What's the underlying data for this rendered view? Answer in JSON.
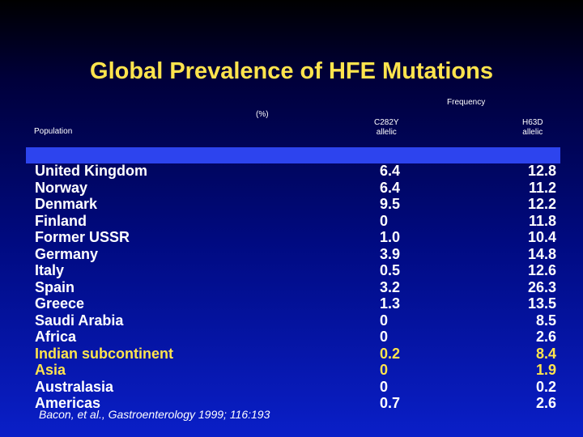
{
  "slide": {
    "title": "Global Prevalence of HFE Mutations",
    "frequency_label": "Frequency",
    "percent_label": "(%)",
    "population_label": "Population",
    "c282y_label": "C282Y",
    "h63d_label": "H63D",
    "allelic_label": "allelic",
    "footnote": "Bacon, et al., Gastroenterology 1999; 116:193"
  },
  "rows": [
    {
      "population": "United Kingdom",
      "c282y": "6.4",
      "h63d": "12.8",
      "highlight": false
    },
    {
      "population": "Norway",
      "c282y": "6.4",
      "h63d": "11.2",
      "highlight": false
    },
    {
      "population": "Denmark",
      "c282y": "9.5",
      "h63d": "12.2",
      "highlight": false
    },
    {
      "population": "Finland",
      "c282y": "0",
      "h63d": "11.8",
      "highlight": false
    },
    {
      "population": "Former USSR",
      "c282y": "1.0",
      "h63d": "10.4",
      "highlight": false
    },
    {
      "population": "Germany",
      "c282y": "3.9",
      "h63d": "14.8",
      "highlight": false
    },
    {
      "population": "Italy",
      "c282y": "0.5",
      "h63d": "12.6",
      "highlight": false
    },
    {
      "population": "Spain",
      "c282y": "3.2",
      "h63d": "26.3",
      "highlight": false
    },
    {
      "population": "Greece",
      "c282y": "1.3",
      "h63d": "13.5",
      "highlight": false
    },
    {
      "population": "Saudi Arabia",
      "c282y": "0",
      "h63d": "8.5",
      "highlight": false
    },
    {
      "population": "Africa",
      "c282y": "0",
      "h63d": "2.6",
      "highlight": false
    },
    {
      "population": "Indian subcontinent",
      "c282y": "0.2",
      "h63d": "8.4",
      "highlight": true
    },
    {
      "population": "Asia",
      "c282y": "0",
      "h63d": "1.9",
      "highlight": true
    },
    {
      "population": "Australasia",
      "c282y": "0",
      "h63d": "0.2",
      "highlight": false
    },
    {
      "population": "Americas",
      "c282y": "0.7",
      "h63d": "2.6",
      "highlight": false
    }
  ],
  "colors": {
    "title": "#ffe44d",
    "highlight": "#ffe44d",
    "text": "#ffffff",
    "band": "#2d44ee"
  }
}
